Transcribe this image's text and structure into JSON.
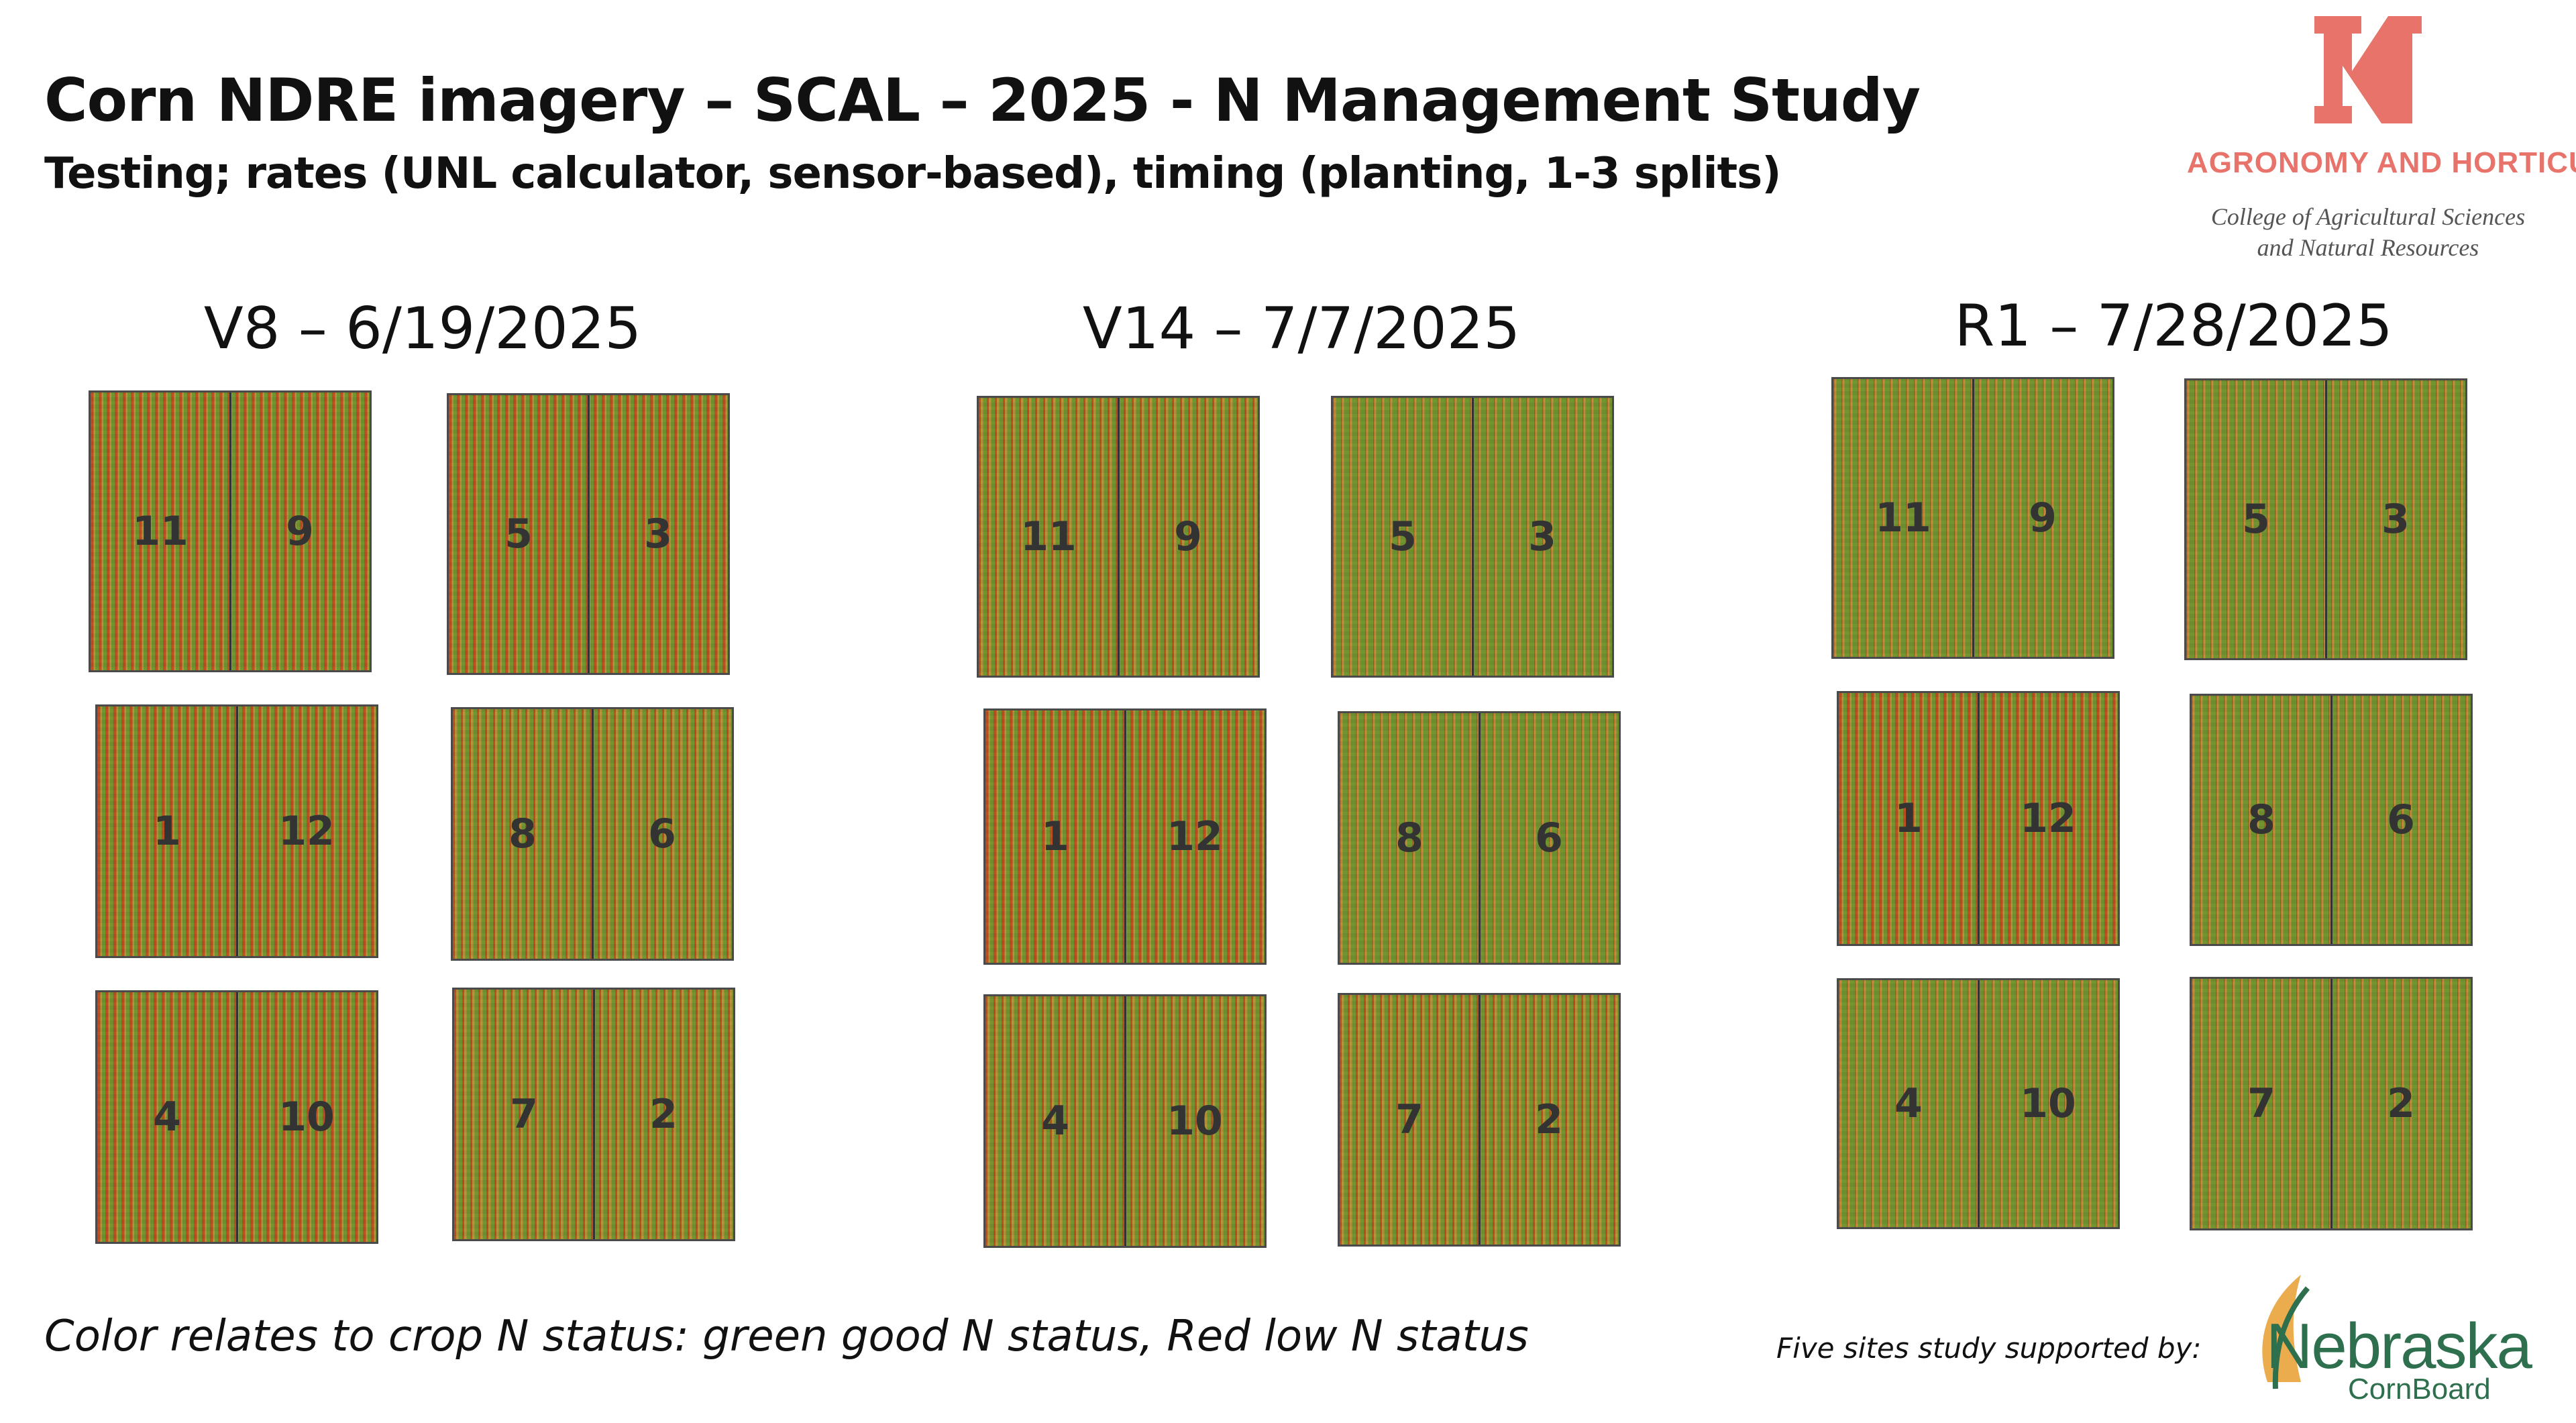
{
  "header": {
    "title": "Corn NDRE imagery – SCAL – 2025  - N Management Study",
    "subtitle": "Testing; rates (UNL calculator, sensor-based), timing (planting, 1-3 splits)"
  },
  "logo": {
    "letter": "N",
    "department": "AGRONOMY AND HORTICULTURE",
    "college_line1": "College of Agricultural Sciences",
    "college_line2": "and Natural Resources",
    "color": "#e8736b"
  },
  "stages": [
    {
      "title": "V8 – 6/19/2025",
      "blocks": [
        {
          "left": "11",
          "right": "9",
          "ndre_tone": "red"
        },
        {
          "left": "5",
          "right": "3",
          "ndre_tone": "red"
        },
        {
          "left": "1",
          "right": "12",
          "ndre_tone": "red"
        },
        {
          "left": "8",
          "right": "6",
          "ndre_tone": "mixed"
        },
        {
          "left": "4",
          "right": "10",
          "ndre_tone": "red"
        },
        {
          "left": "7",
          "right": "2",
          "ndre_tone": "mixed"
        }
      ]
    },
    {
      "title": "V14 – 7/7/2025",
      "blocks": [
        {
          "left": "11",
          "right": "9",
          "ndre_tone": "mixed"
        },
        {
          "left": "5",
          "right": "3",
          "ndre_tone": "green"
        },
        {
          "left": "1",
          "right": "12",
          "ndre_tone": "red"
        },
        {
          "left": "8",
          "right": "6",
          "ndre_tone": "green"
        },
        {
          "left": "4",
          "right": "10",
          "ndre_tone": "mixed"
        },
        {
          "left": "7",
          "right": "2",
          "ndre_tone": "mixed"
        }
      ]
    },
    {
      "title": "R1 – 7/28/2025",
      "blocks": [
        {
          "left": "11",
          "right": "9",
          "ndre_tone": "green"
        },
        {
          "left": "5",
          "right": "3",
          "ndre_tone": "green"
        },
        {
          "left": "1",
          "right": "12",
          "ndre_tone": "red"
        },
        {
          "left": "8",
          "right": "6",
          "ndre_tone": "green"
        },
        {
          "left": "4",
          "right": "10",
          "ndre_tone": "green"
        },
        {
          "left": "7",
          "right": "2",
          "ndre_tone": "green"
        }
      ]
    }
  ],
  "footer": {
    "note": "Color relates to crop N status: green good N status, Red low N status",
    "support": "Five sites study supported by:",
    "sponsor_name": "Nebraska",
    "sponsor_sub": "CornBoard",
    "sponsor_color": "#2e6f4e",
    "sponsor_accent": "#e8a33a"
  },
  "colors": {
    "ndre_green": "#86c466",
    "ndre_red": "#e0694a",
    "ndre_neutral": "#d8c27a"
  }
}
